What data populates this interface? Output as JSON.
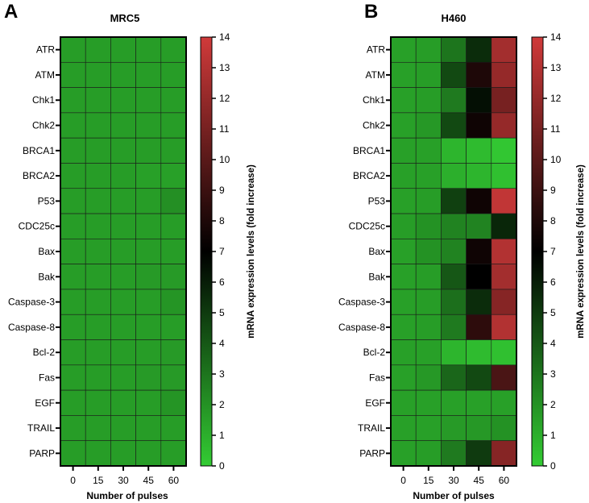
{
  "chart_data": [
    {
      "type": "heatmap",
      "panel_label": "A",
      "title": "MRC5",
      "xlabel": "Number of pulses",
      "ylabel": "",
      "x_categories": [
        "0",
        "15",
        "30",
        "45",
        "60"
      ],
      "y_categories": [
        "ATR",
        "ATM",
        "Chk1",
        "Chk2",
        "BRCA1",
        "BRCA2",
        "P53",
        "CDC25c",
        "Bax",
        "Bak",
        "Caspase-3",
        "Caspase-8",
        "Bcl-2",
        "Fas",
        "EGF",
        "TRAIL",
        "PARP"
      ],
      "values": [
        [
          1.6,
          1.6,
          1.6,
          1.6,
          1.6
        ],
        [
          1.6,
          1.6,
          1.6,
          1.6,
          1.6
        ],
        [
          1.6,
          1.6,
          1.6,
          1.6,
          1.6
        ],
        [
          1.6,
          1.6,
          1.6,
          1.6,
          1.6
        ],
        [
          1.6,
          1.6,
          1.6,
          1.6,
          1.6
        ],
        [
          1.6,
          1.6,
          1.6,
          1.5,
          1.5
        ],
        [
          1.6,
          1.6,
          1.6,
          1.6,
          2.1
        ],
        [
          1.6,
          1.6,
          1.6,
          1.6,
          1.6
        ],
        [
          1.6,
          1.6,
          1.6,
          1.6,
          1.6
        ],
        [
          1.6,
          1.6,
          1.6,
          1.7,
          1.7
        ],
        [
          1.6,
          1.6,
          1.6,
          1.6,
          1.9
        ],
        [
          1.6,
          1.6,
          1.6,
          1.6,
          1.6
        ],
        [
          1.6,
          1.6,
          1.6,
          1.6,
          1.7
        ],
        [
          1.6,
          1.6,
          1.6,
          1.7,
          1.7
        ],
        [
          1.6,
          1.6,
          1.6,
          1.6,
          1.9
        ],
        [
          1.6,
          1.6,
          1.6,
          1.6,
          1.6
        ],
        [
          1.6,
          1.6,
          1.6,
          1.6,
          1.6
        ]
      ],
      "colorbar": {
        "min": 0,
        "max": 14,
        "ticks": [
          "0",
          "1",
          "2",
          "3",
          "4",
          "5",
          "6",
          "7",
          "8",
          "9",
          "10",
          "11",
          "12",
          "13",
          "14"
        ],
        "label": "mRNA expression levels (fold increase)",
        "low_color": "#33cc33",
        "mid_color": "#000000",
        "high_color": "#d03a3a",
        "mid_value": 7
      }
    },
    {
      "type": "heatmap",
      "panel_label": "B",
      "title": "H460",
      "xlabel": "Number of pulses",
      "ylabel": "",
      "x_categories": [
        "0",
        "15",
        "30",
        "45",
        "60"
      ],
      "y_categories": [
        "ATR",
        "ATM",
        "Chk1",
        "Chk2",
        "BRCA1",
        "BRCA2",
        "P53",
        "CDC25c",
        "Bax",
        "Bak",
        "Caspase-3",
        "Caspase-8",
        "Bcl-2",
        "Fas",
        "EGF",
        "TRAIL",
        "PARP"
      ],
      "values": [
        [
          1.5,
          1.6,
          3.0,
          5.5,
          12.5
        ],
        [
          1.5,
          1.6,
          4.5,
          8.0,
          12.0
        ],
        [
          1.5,
          1.6,
          2.8,
          6.5,
          11.0
        ],
        [
          1.5,
          1.8,
          4.5,
          7.5,
          12.0
        ],
        [
          1.5,
          1.5,
          0.8,
          0.6,
          0.2
        ],
        [
          1.5,
          1.5,
          1.0,
          0.8,
          0.4
        ],
        [
          1.5,
          1.6,
          4.8,
          7.5,
          13.5
        ],
        [
          1.6,
          2.0,
          2.5,
          2.5,
          5.7
        ],
        [
          1.5,
          2.0,
          2.5,
          7.5,
          13.0
        ],
        [
          1.5,
          1.6,
          4.0,
          7.0,
          12.5
        ],
        [
          1.5,
          1.6,
          3.2,
          5.5,
          11.5
        ],
        [
          1.5,
          1.6,
          2.8,
          8.5,
          13.0
        ],
        [
          1.5,
          1.5,
          0.8,
          0.6,
          0.4
        ],
        [
          1.5,
          1.8,
          3.5,
          4.5,
          9.5
        ],
        [
          1.5,
          1.5,
          1.5,
          1.5,
          1.5
        ],
        [
          1.5,
          1.5,
          1.7,
          1.8,
          2.0
        ],
        [
          1.5,
          1.6,
          2.8,
          5.0,
          11.5
        ]
      ],
      "colorbar": {
        "min": 0,
        "max": 14,
        "ticks": [
          "0",
          "1",
          "2",
          "3",
          "4",
          "5",
          "6",
          "7",
          "8",
          "9",
          "10",
          "11",
          "12",
          "13",
          "14"
        ],
        "label": "mRNA expression levels (fold increase)",
        "low_color": "#33cc33",
        "mid_color": "#000000",
        "high_color": "#d03a3a",
        "mid_value": 7
      }
    }
  ]
}
